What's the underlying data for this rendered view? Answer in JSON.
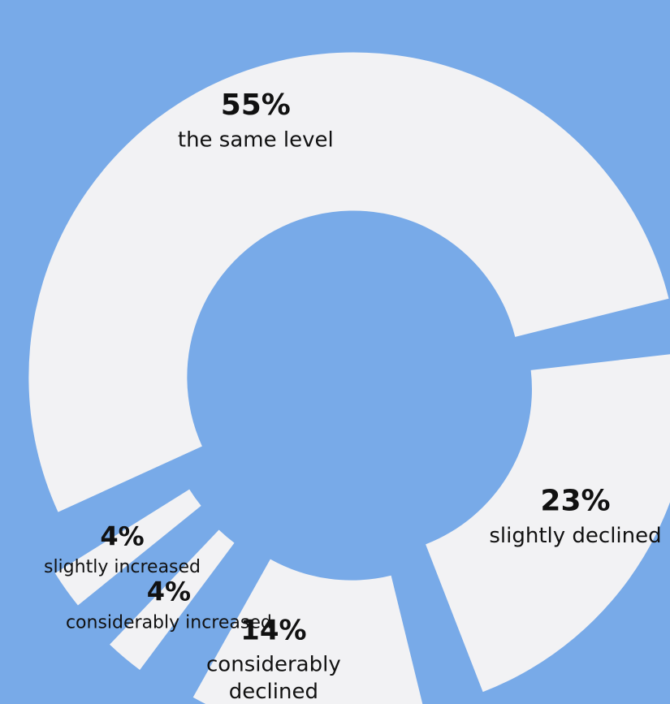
{
  "colors": {
    "background": "#78aae8",
    "slice_fill": "#f2f2f4",
    "text": "#111111"
  },
  "chart_data": {
    "type": "pie",
    "variant": "exploded-donut",
    "title": "",
    "unit": "%",
    "slices": [
      {
        "percent_label": "55%",
        "label_lines": [
          "the same level"
        ],
        "value": 55
      },
      {
        "percent_label": "23%",
        "label_lines": [
          "slightly declined"
        ],
        "value": 23
      },
      {
        "percent_label": "14%",
        "label_lines": [
          "considerably",
          "declined"
        ],
        "value": 14
      },
      {
        "percent_label": "4%",
        "label_lines": [
          "considerably increased"
        ],
        "value": 4
      },
      {
        "percent_label": "4%",
        "label_lines": [
          "slightly increased"
        ],
        "value": 4
      }
    ]
  }
}
